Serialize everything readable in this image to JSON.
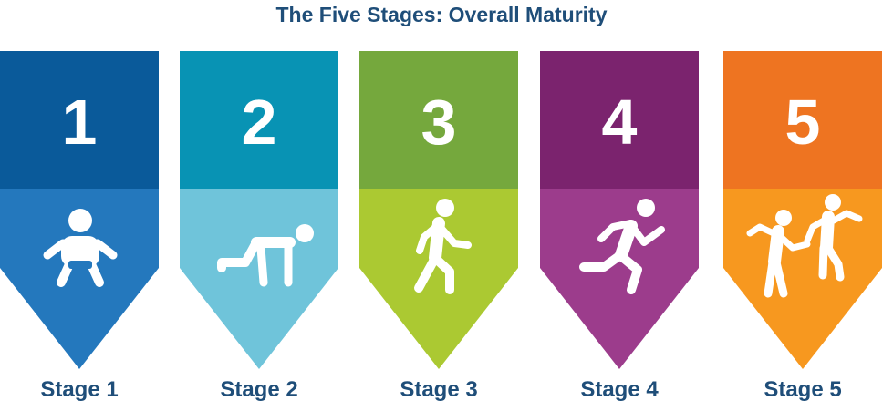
{
  "title": "The Five Stages: Overall Maturity",
  "stages": [
    {
      "number": "1",
      "label": "Stage 1",
      "icon": "baby-icon",
      "top_color": "#0a5a9a",
      "bottom_color": "#2478bd"
    },
    {
      "number": "2",
      "label": "Stage 2",
      "icon": "crawling-person-icon",
      "top_color": "#0893b4",
      "bottom_color": "#6fc4da"
    },
    {
      "number": "3",
      "label": "Stage 3",
      "icon": "walking-person-icon",
      "top_color": "#75a83d",
      "bottom_color": "#abc932"
    },
    {
      "number": "4",
      "label": "Stage 4",
      "icon": "running-person-icon",
      "top_color": "#7b236e",
      "bottom_color": "#9c3c8c"
    },
    {
      "number": "5",
      "label": "Stage 5",
      "icon": "dancing-people-icon",
      "top_color": "#ee7421",
      "bottom_color": "#f7981f"
    }
  ]
}
